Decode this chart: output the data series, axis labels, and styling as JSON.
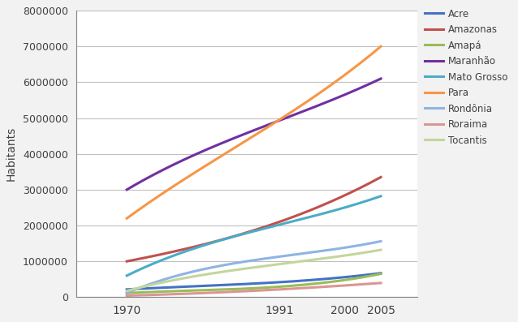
{
  "years": [
    1970,
    1991,
    2000,
    2005
  ],
  "series": {
    "Acre": {
      "color": "#4472c4",
      "values": [
        215000,
        417000,
        557000,
        670000
      ]
    },
    "Amazonas": {
      "color": "#c0504d",
      "values": [
        1000000,
        2100000,
        2840000,
        3350000
      ]
    },
    "Amapá": {
      "color": "#9bbb59",
      "values": [
        114000,
        290000,
        477000,
        650000
      ]
    },
    "Maranhão": {
      "color": "#7030a0",
      "values": [
        3000000,
        4930000,
        5650000,
        6100000
      ]
    },
    "Mato Grosso": {
      "color": "#4bacc6",
      "values": [
        600000,
        2020000,
        2500000,
        2820000
      ]
    },
    "Para": {
      "color": "#f79646",
      "values": [
        2200000,
        4950000,
        6200000,
        7000000
      ]
    },
    "Rondônia": {
      "color": "#8eb4e3",
      "values": [
        116000,
        1130000,
        1380000,
        1560000
      ]
    },
    "Roraima": {
      "color": "#d99694",
      "values": [
        41000,
        215000,
        325000,
        395000
      ]
    },
    "Tocantis": {
      "color": "#c3d69b",
      "values": [
        175000,
        920000,
        1160000,
        1320000
      ]
    }
  },
  "ylabel": "Habitants",
  "ylim": [
    0,
    8000000
  ],
  "yticks": [
    0,
    1000000,
    2000000,
    3000000,
    4000000,
    5000000,
    6000000,
    7000000,
    8000000
  ],
  "figure_bg": "#f2f2f2",
  "plot_bg": "#ffffff",
  "grid_color": "#c0c0c0"
}
